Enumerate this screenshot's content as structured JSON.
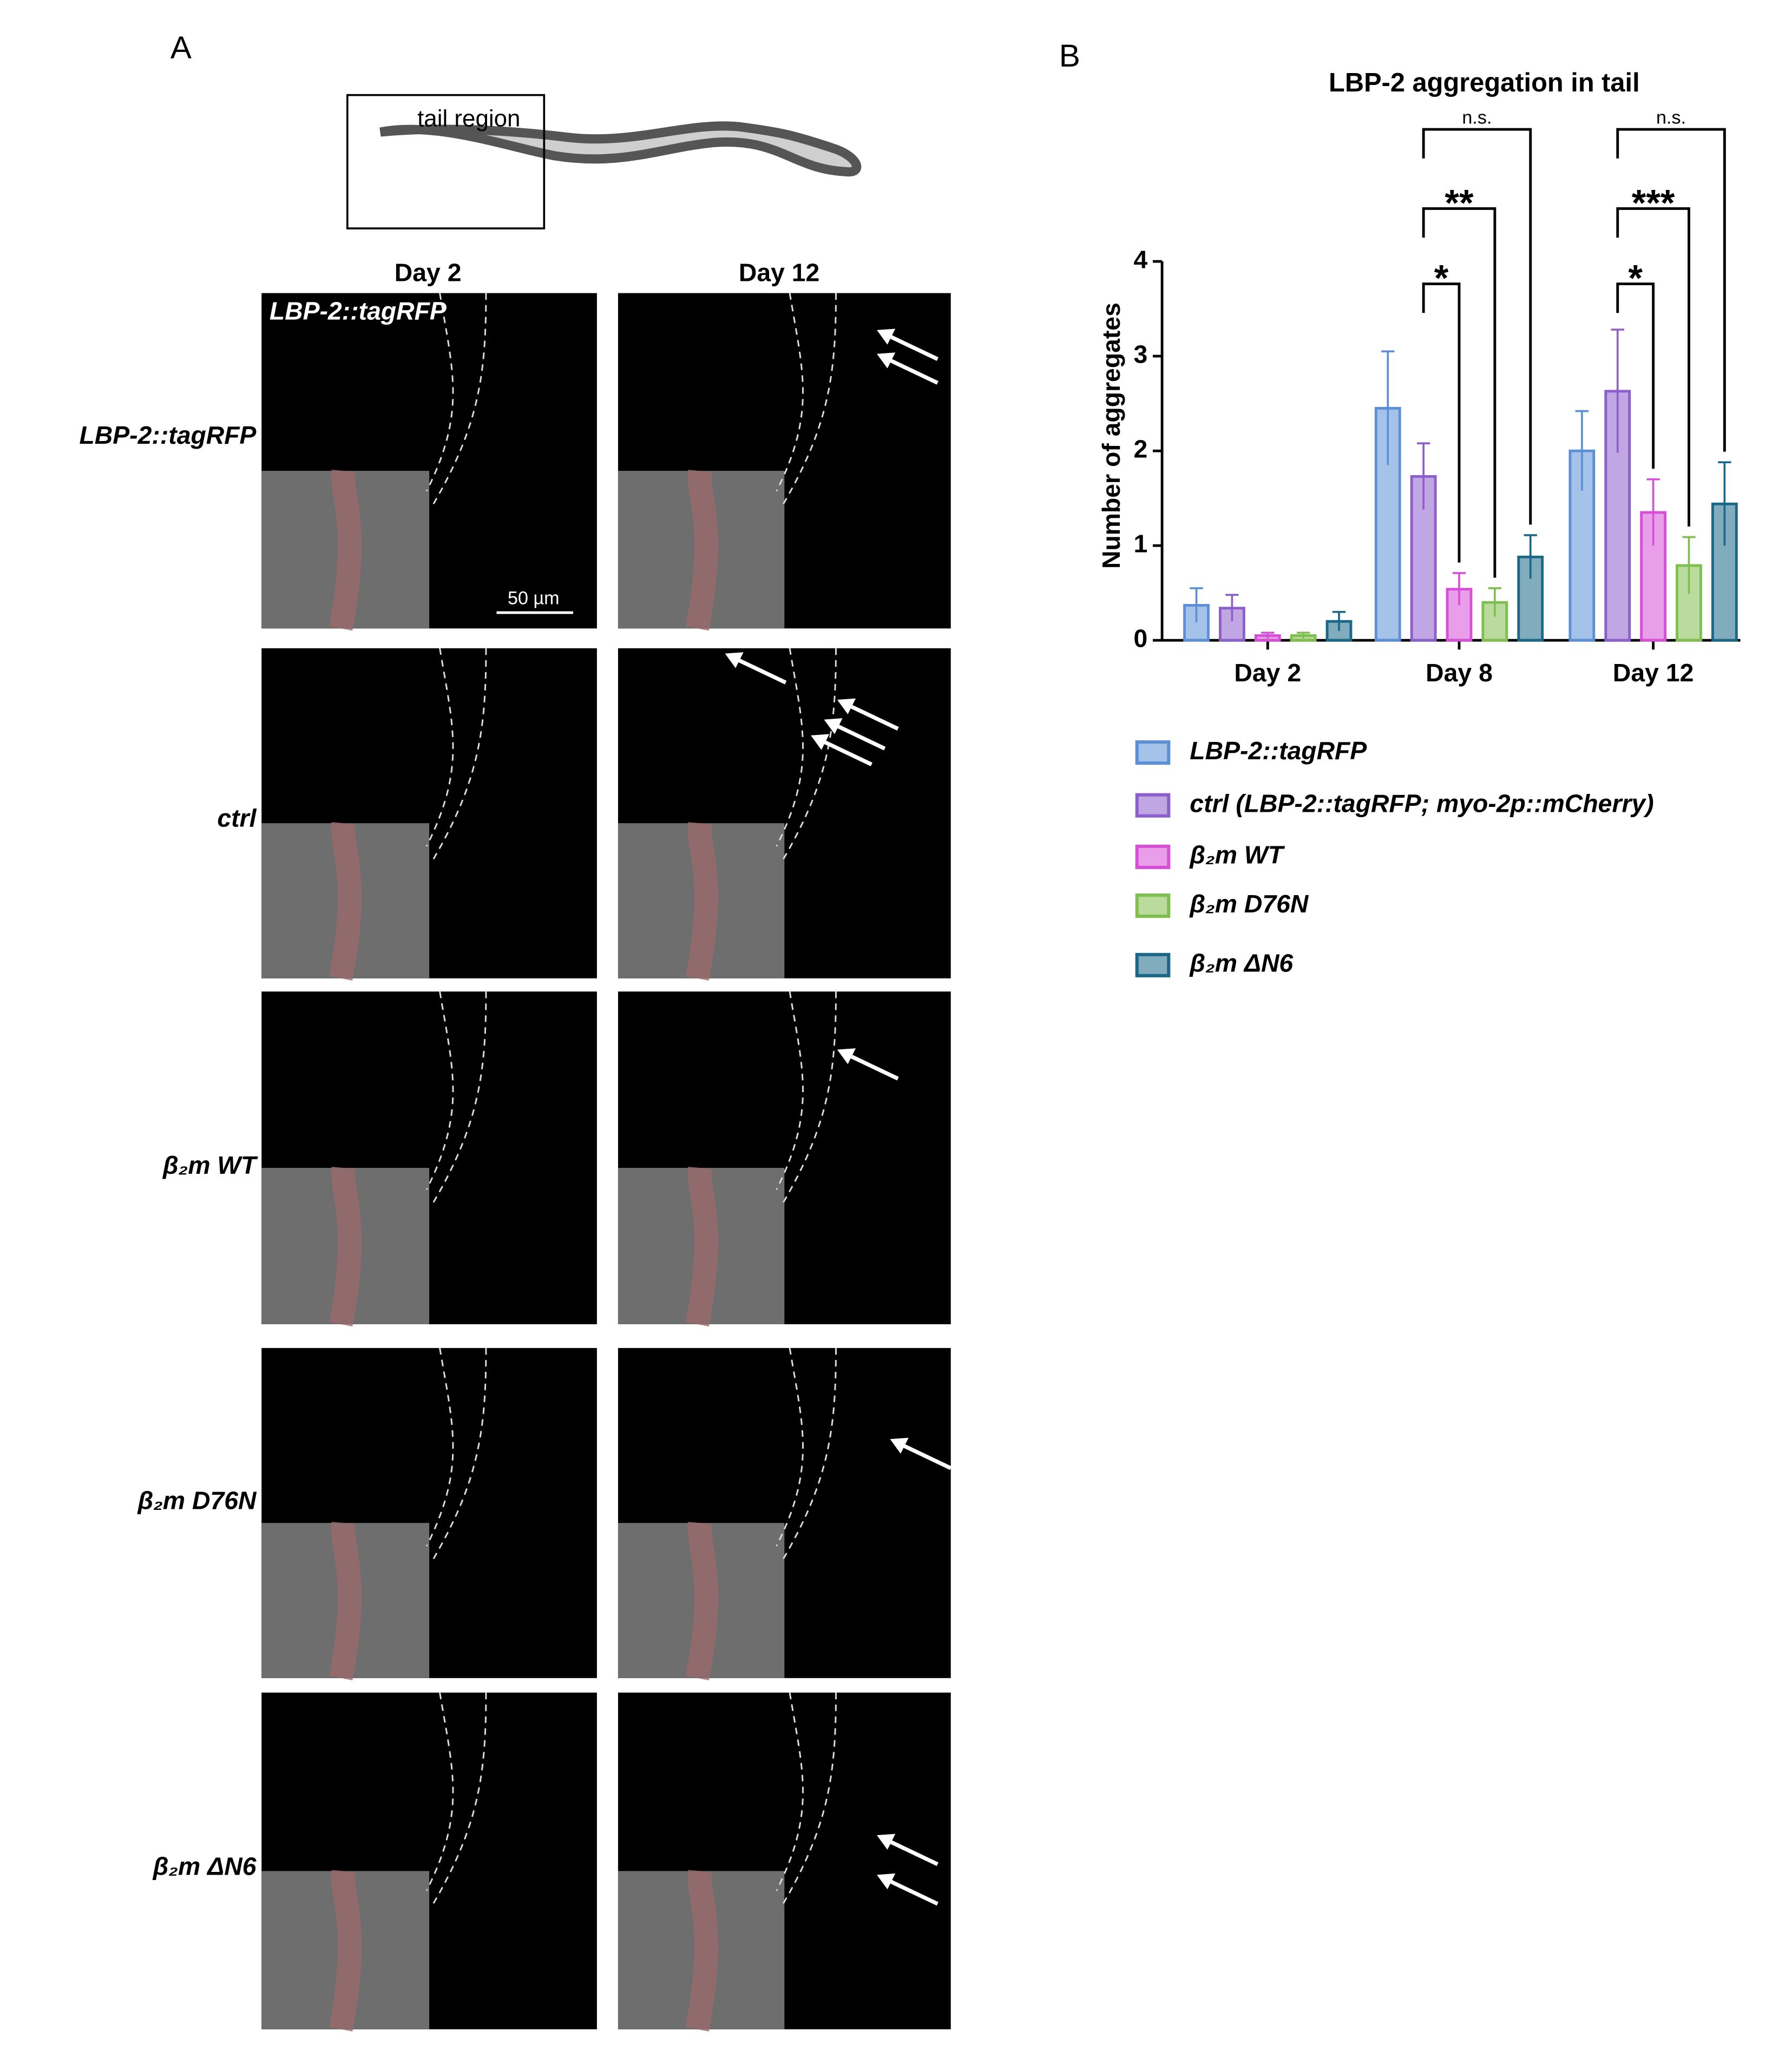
{
  "panel_a": {
    "label": "A",
    "schematic_label": "tail region",
    "columns": [
      "Day 2",
      "Day 12"
    ],
    "rows": [
      "LBP-2::tagRFP",
      "ctrl",
      "β₂m WT",
      "β₂m D76N",
      "β₂m ΔN6"
    ],
    "image_label": "LBP-2::tagRFP",
    "scale_bar": "50 µm"
  },
  "panel_b_label": "B",
  "chart_data": {
    "type": "bar",
    "title": "LBP-2 aggregation in tail",
    "y_label": "Number of aggregates",
    "categories": [
      "Day 2",
      "Day 8",
      "Day 12"
    ],
    "series": [
      {
        "name": "LBP-2::tagRFP",
        "color": "#5b8fd6",
        "values": [
          0.37,
          2.45,
          2.0
        ],
        "errors": [
          0.18,
          0.6,
          0.42
        ]
      },
      {
        "name": "ctrl (LBP-2::tagRFP; myo-2p::mCherry)",
        "color": "#8c5fcc",
        "values": [
          0.34,
          1.73,
          2.63
        ],
        "errors": [
          0.14,
          0.35,
          0.65
        ]
      },
      {
        "name": "β₂m WT",
        "color": "#d64fd6",
        "values": [
          0.05,
          0.54,
          1.35
        ],
        "errors": [
          0.03,
          0.17,
          0.35
        ]
      },
      {
        "name": "β₂m D76N",
        "color": "#7fbf4f",
        "values": [
          0.05,
          0.4,
          0.79
        ],
        "errors": [
          0.03,
          0.15,
          0.3
        ]
      },
      {
        "name": "β₂m ΔN6",
        "color": "#1a6788",
        "values": [
          0.2,
          0.88,
          1.44
        ],
        "errors": [
          0.1,
          0.23,
          0.44
        ]
      }
    ],
    "ylim": [
      0,
      4
    ],
    "yticks": [
      0,
      1,
      2,
      3,
      4
    ],
    "annotations": [
      "*",
      "**",
      "n.s.",
      "*",
      "***",
      "n.s."
    ]
  }
}
